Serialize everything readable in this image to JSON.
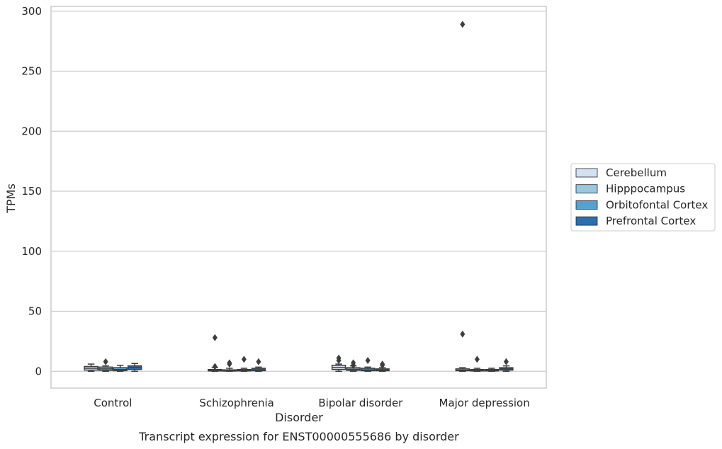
{
  "chart_data": {
    "type": "box",
    "xlabel": "Disorder",
    "ylabel": "TPMs",
    "caption": "Transcript expression for ENST00000555686 by disorder",
    "ylim": [
      -14,
      304
    ],
    "yticks": [
      "0",
      "50",
      "100",
      "150",
      "200",
      "250",
      "300"
    ],
    "grid": true,
    "legend_placement": "right",
    "categories": [
      "Control",
      "Schizophrenia",
      "Bipolar disorder",
      "Major depression"
    ],
    "series": [
      {
        "name": "Cerebellum",
        "color": "#d1e2f2",
        "boxes": [
          {
            "q1": 1.0,
            "median": 2.5,
            "q3": 4.0,
            "whisker_low": 0.0,
            "whisker_high": 6.0,
            "outliers": []
          },
          {
            "q1": 0.3,
            "median": 0.8,
            "q3": 1.5,
            "whisker_low": 0.0,
            "whisker_high": 3.0,
            "outliers": [
              28,
              4
            ]
          },
          {
            "q1": 1.5,
            "median": 3.0,
            "q3": 5.0,
            "whisker_low": 0.0,
            "whisker_high": 6.0,
            "outliers": [
              11,
              9
            ]
          },
          {
            "q1": 0.5,
            "median": 1.0,
            "q3": 2.0,
            "whisker_low": 0.0,
            "whisker_high": 3.0,
            "outliers": [
              289,
              31
            ]
          }
        ]
      },
      {
        "name": "Hipppocampus",
        "color": "#9ac8e0",
        "boxes": [
          {
            "q1": 0.8,
            "median": 2.0,
            "q3": 3.5,
            "whisker_low": 0.0,
            "whisker_high": 4.5,
            "outliers": [
              8
            ]
          },
          {
            "q1": 0.2,
            "median": 0.6,
            "q3": 1.2,
            "whisker_low": 0.0,
            "whisker_high": 2.5,
            "outliers": [
              7,
              6
            ]
          },
          {
            "q1": 0.8,
            "median": 1.8,
            "q3": 3.0,
            "whisker_low": 0.0,
            "whisker_high": 4.5,
            "outliers": [
              7,
              5
            ]
          },
          {
            "q1": 0.3,
            "median": 0.8,
            "q3": 1.5,
            "whisker_low": 0.0,
            "whisker_high": 2.5,
            "outliers": [
              10
            ]
          }
        ]
      },
      {
        "name": "Orbitofontal Cortex",
        "color": "#5aa0cd",
        "boxes": [
          {
            "q1": 0.5,
            "median": 1.5,
            "q3": 3.0,
            "whisker_low": 0.0,
            "whisker_high": 5.0,
            "outliers": []
          },
          {
            "q1": 0.3,
            "median": 0.8,
            "q3": 1.5,
            "whisker_low": 0.0,
            "whisker_high": 2.5,
            "outliers": [
              10
            ]
          },
          {
            "q1": 0.5,
            "median": 1.2,
            "q3": 2.5,
            "whisker_low": 0.0,
            "whisker_high": 3.5,
            "outliers": [
              9
            ]
          },
          {
            "q1": 0.3,
            "median": 0.8,
            "q3": 1.5,
            "whisker_low": 0.0,
            "whisker_high": 2.5,
            "outliers": []
          }
        ]
      },
      {
        "name": "Prefrontal Cortex",
        "color": "#2b6fb0",
        "boxes": [
          {
            "q1": 1.5,
            "median": 3.0,
            "q3": 4.5,
            "whisker_low": 0.0,
            "whisker_high": 6.5,
            "outliers": []
          },
          {
            "q1": 0.5,
            "median": 1.2,
            "q3": 2.5,
            "whisker_low": 0.0,
            "whisker_high": 3.5,
            "outliers": [
              8
            ]
          },
          {
            "q1": 0.5,
            "median": 1.0,
            "q3": 2.0,
            "whisker_low": 0.0,
            "whisker_high": 3.0,
            "outliers": [
              6,
              5
            ]
          },
          {
            "q1": 1.0,
            "median": 2.0,
            "q3": 3.0,
            "whisker_low": 0.0,
            "whisker_high": 4.5,
            "outliers": [
              8
            ]
          }
        ]
      }
    ]
  }
}
